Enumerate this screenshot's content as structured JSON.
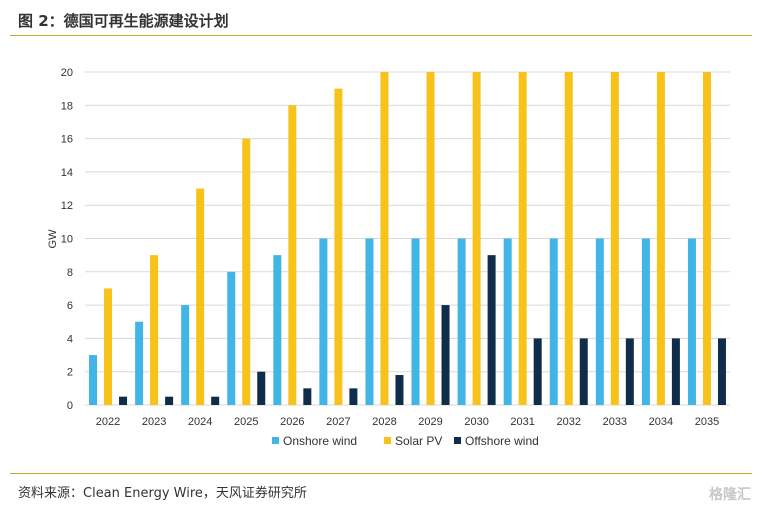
{
  "figure": {
    "title": "图 2：德国可再生能源建设计划",
    "source": "资料来源：Clean Energy Wire，天风证券研究所",
    "watermark": "格隆汇"
  },
  "colors": {
    "onshore": "#41b6e6",
    "solar": "#f7c21a",
    "offshore": "#0f2d4a",
    "rule": "#c9a227",
    "grid": "#d9d9d9"
  },
  "chart_data": {
    "type": "bar",
    "title": "",
    "xlabel": "",
    "ylabel": "GW",
    "ylim": [
      0,
      20
    ],
    "yticks": [
      0,
      2,
      4,
      6,
      8,
      10,
      12,
      14,
      16,
      18,
      20
    ],
    "grid": true,
    "legend_position": "bottom",
    "categories": [
      "2022",
      "2023",
      "2024",
      "2025",
      "2026",
      "2027",
      "2028",
      "2029",
      "2030",
      "2031",
      "2032",
      "2033",
      "2034",
      "2035"
    ],
    "series": [
      {
        "name": "Onshore wind",
        "color": "#41b6e6",
        "values": [
          3,
          5,
          6,
          8,
          9,
          10,
          10,
          10,
          10,
          10,
          10,
          10,
          10,
          10
        ]
      },
      {
        "name": "Solar PV",
        "color": "#f7c21a",
        "values": [
          7,
          9,
          13,
          16,
          18,
          19,
          20,
          20,
          20,
          20,
          20,
          20,
          20,
          20
        ]
      },
      {
        "name": "Offshore wind",
        "color": "#0f2d4a",
        "values": [
          0.5,
          0.5,
          0.5,
          2,
          1,
          1,
          1.8,
          6,
          9,
          4,
          4,
          4,
          4,
          4
        ]
      }
    ]
  }
}
